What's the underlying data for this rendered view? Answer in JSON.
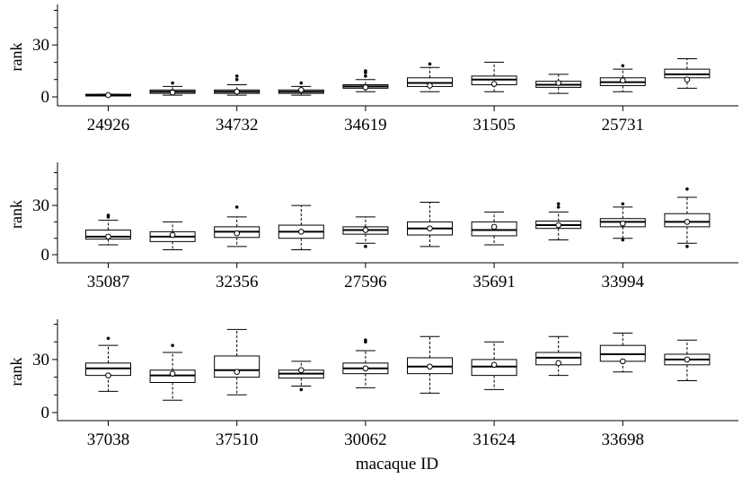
{
  "chart_data": {
    "type": "box",
    "xlabel": "macaque ID",
    "ylabel": "rank",
    "panels": [
      {
        "ylabel": "rank",
        "ylim": [
          0,
          50
        ],
        "yticks": [
          0,
          30
        ],
        "x_tick_labels": [
          "24926",
          "34732",
          "34619",
          "31505",
          "25731"
        ],
        "boxes": [
          {
            "min": 0.5,
            "q1": 0.5,
            "median": 1,
            "q3": 1.5,
            "max": 1.5,
            "mean": 1,
            "outliers": []
          },
          {
            "min": 1,
            "q1": 2,
            "median": 3,
            "q3": 4,
            "max": 6,
            "mean": 2.5,
            "outliers": [
              8
            ]
          },
          {
            "min": 1,
            "q1": 2,
            "median": 3,
            "q3": 4,
            "max": 7,
            "mean": 3,
            "outliers": [
              10,
              12
            ]
          },
          {
            "min": 1,
            "q1": 2,
            "median": 3,
            "q3": 4,
            "max": 6,
            "mean": 4,
            "outliers": [
              8
            ]
          },
          {
            "min": 3,
            "q1": 5,
            "median": 6,
            "q3": 7,
            "max": 10,
            "mean": 5.5,
            "outliers": [
              12,
              14,
              15
            ]
          },
          {
            "min": 3,
            "q1": 6,
            "median": 8,
            "q3": 11,
            "max": 17,
            "mean": 6.5,
            "outliers": [
              19
            ]
          },
          {
            "min": 3,
            "q1": 7,
            "median": 10,
            "q3": 12,
            "max": 20,
            "mean": 7.5,
            "outliers": []
          },
          {
            "min": 2,
            "q1": 5.5,
            "median": 7,
            "q3": 9,
            "max": 13,
            "mean": 8,
            "outliers": []
          },
          {
            "min": 3,
            "q1": 6.5,
            "median": 8.5,
            "q3": 11,
            "max": 16,
            "mean": 9.5,
            "outliers": [
              18
            ]
          },
          {
            "min": 5,
            "q1": 11,
            "median": 13,
            "q3": 16,
            "max": 22,
            "mean": 10,
            "outliers": []
          }
        ]
      },
      {
        "ylabel": "rank",
        "ylim": [
          0,
          52
        ],
        "yticks": [
          0,
          30
        ],
        "x_tick_labels": [
          "35087",
          "32356",
          "27596",
          "35691",
          "33994"
        ],
        "boxes": [
          {
            "min": 6,
            "q1": 9.5,
            "median": 11,
            "q3": 15,
            "max": 21,
            "mean": 11,
            "outliers": [
              23,
              24
            ]
          },
          {
            "min": 3,
            "q1": 8,
            "median": 11,
            "q3": 14,
            "max": 20,
            "mean": 12,
            "outliers": []
          },
          {
            "min": 5,
            "q1": 10.5,
            "median": 14,
            "q3": 17,
            "max": 23,
            "mean": 13,
            "outliers": [
              29
            ]
          },
          {
            "min": 3,
            "q1": 10,
            "median": 14,
            "q3": 18,
            "max": 30,
            "mean": 14,
            "outliers": []
          },
          {
            "min": 7,
            "q1": 12.5,
            "median": 15,
            "q3": 17,
            "max": 23,
            "mean": 15,
            "outliers": [
              5
            ]
          },
          {
            "min": 5,
            "q1": 12,
            "median": 16,
            "q3": 20,
            "max": 32,
            "mean": 16,
            "outliers": []
          },
          {
            "min": 6,
            "q1": 11.5,
            "median": 15,
            "q3": 20,
            "max": 26,
            "mean": 17,
            "outliers": []
          },
          {
            "min": 9,
            "q1": 16,
            "median": 18,
            "q3": 20.5,
            "max": 26,
            "mean": 18,
            "outliers": [
              29,
              31
            ]
          },
          {
            "min": 10,
            "q1": 17,
            "median": 20,
            "q3": 22,
            "max": 29,
            "mean": 19,
            "outliers": [
              9,
              31
            ]
          },
          {
            "min": 7,
            "q1": 17,
            "median": 20,
            "q3": 25,
            "max": 35,
            "mean": 20,
            "outliers": [
              40,
              5
            ]
          }
        ]
      },
      {
        "ylabel": "rank",
        "ylim": [
          0,
          52
        ],
        "yticks": [
          0,
          30
        ],
        "x_tick_labels": [
          "37038",
          "37510",
          "30062",
          "31624",
          "33698"
        ],
        "boxes": [
          {
            "min": 12,
            "q1": 21,
            "median": 25,
            "q3": 28,
            "max": 38,
            "mean": 21,
            "outliers": [
              42
            ]
          },
          {
            "min": 7,
            "q1": 17,
            "median": 21,
            "q3": 24,
            "max": 34,
            "mean": 22,
            "outliers": [
              38
            ]
          },
          {
            "min": 10,
            "q1": 20,
            "median": 24,
            "q3": 32,
            "max": 47,
            "mean": 23,
            "outliers": []
          },
          {
            "min": 15,
            "q1": 19.5,
            "median": 22,
            "q3": 24,
            "max": 29,
            "mean": 24,
            "outliers": [
              13
            ]
          },
          {
            "min": 14,
            "q1": 22,
            "median": 25,
            "q3": 28,
            "max": 35,
            "mean": 25,
            "outliers": [
              40,
              41
            ]
          },
          {
            "min": 11,
            "q1": 22,
            "median": 26,
            "q3": 31,
            "max": 43,
            "mean": 26,
            "outliers": []
          },
          {
            "min": 13,
            "q1": 21,
            "median": 26,
            "q3": 30,
            "max": 40,
            "mean": 27,
            "outliers": []
          },
          {
            "min": 21,
            "q1": 27,
            "median": 31,
            "q3": 34,
            "max": 43,
            "mean": 28,
            "outliers": []
          },
          {
            "min": 23,
            "q1": 29,
            "median": 33,
            "q3": 38,
            "max": 45,
            "mean": 29,
            "outliers": []
          },
          {
            "min": 18,
            "q1": 27,
            "median": 30,
            "q3": 33,
            "max": 41,
            "mean": 30,
            "outliers": []
          }
        ]
      }
    ]
  }
}
